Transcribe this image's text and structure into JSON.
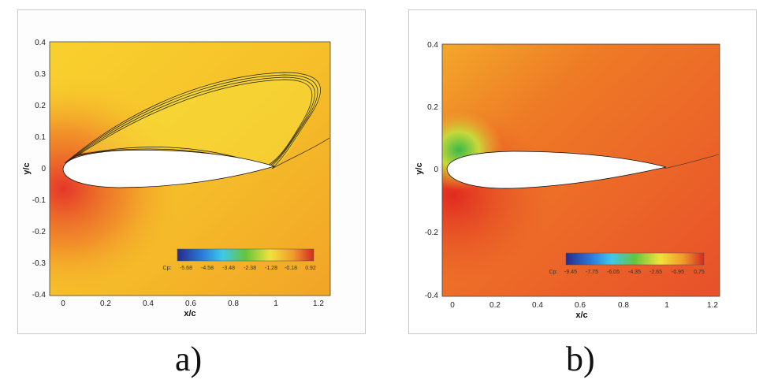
{
  "panels": [
    {
      "caption": "a)",
      "x_ticks": [
        "0",
        "0.2",
        "0.4",
        "0.6",
        "0.8",
        "1",
        "1.2"
      ],
      "y_ticks": [
        "0.4",
        "0.3",
        "0.2",
        "0.1",
        "0",
        "-0.1",
        "-0.2",
        "-0.3",
        "-0.4"
      ],
      "xlabel": "x/c",
      "ylabel": "y/c",
      "colorbar": {
        "label": "Cp:",
        "values": [
          "-5.68",
          "-4.58",
          "-3.48",
          "-2.38",
          "-1.28",
          "-0.18",
          "0.92"
        ]
      },
      "colors": {
        "field": "#f6c52a",
        "high": "#e8402a",
        "vortex": "#f4e23a"
      }
    },
    {
      "caption": "b)",
      "x_ticks": [
        "0",
        "0.2",
        "0.4",
        "0.6",
        "0.8",
        "1",
        "1.2"
      ],
      "y_ticks": [
        "0.4",
        "0.2",
        "0",
        "-0.2",
        "-0.4"
      ],
      "xlabel": "x/c",
      "ylabel": "y/c",
      "colorbar": {
        "label": "Cp:",
        "values": [
          "-9.45",
          "-7.75",
          "-6.05",
          "-4.35",
          "-2.65",
          "-0.95",
          "0.75"
        ]
      },
      "colors": {
        "field": "#ec5a24",
        "high": "#e43a20",
        "suction": "#4fbf3a"
      }
    }
  ]
}
